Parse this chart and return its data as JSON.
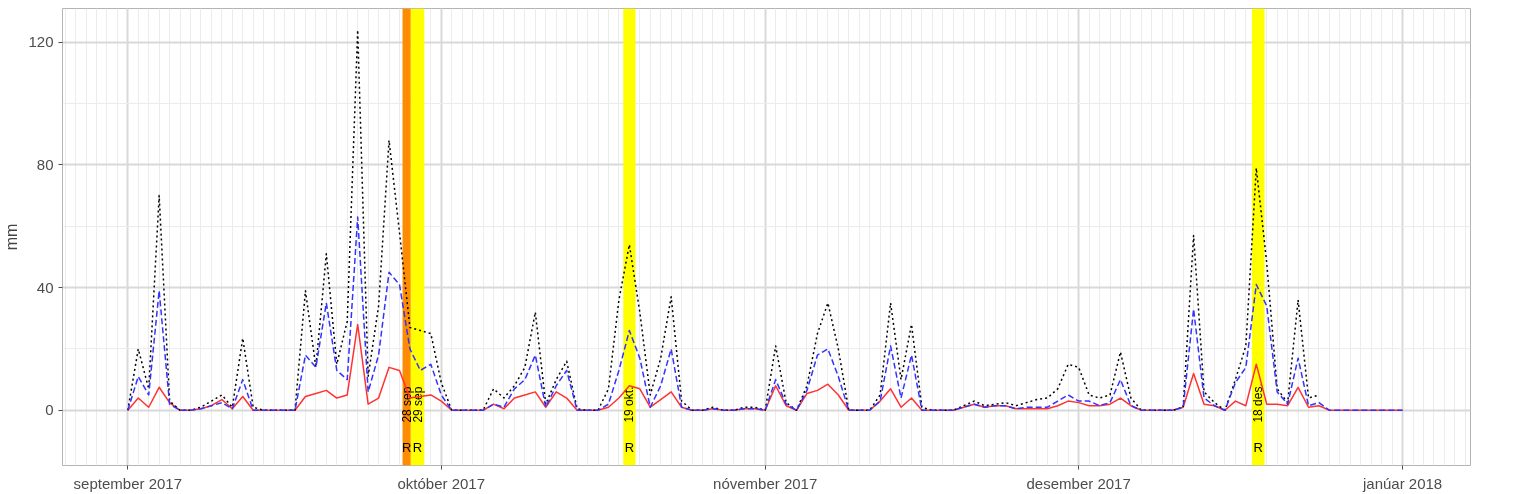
{
  "chart_data": {
    "type": "line",
    "ylabel": "mm",
    "x": [
      "2017-09-01",
      "2017-09-02",
      "2017-09-03",
      "2017-09-04",
      "2017-09-05",
      "2017-09-06",
      "2017-09-07",
      "2017-09-08",
      "2017-09-09",
      "2017-09-10",
      "2017-09-11",
      "2017-09-12",
      "2017-09-13",
      "2017-09-14",
      "2017-09-15",
      "2017-09-16",
      "2017-09-17",
      "2017-09-18",
      "2017-09-19",
      "2017-09-20",
      "2017-09-21",
      "2017-09-22",
      "2017-09-23",
      "2017-09-24",
      "2017-09-25",
      "2017-09-26",
      "2017-09-27",
      "2017-09-28",
      "2017-09-29",
      "2017-09-30",
      "2017-10-01",
      "2017-10-02",
      "2017-10-03",
      "2017-10-04",
      "2017-10-05",
      "2017-10-06",
      "2017-10-07",
      "2017-10-08",
      "2017-10-09",
      "2017-10-10",
      "2017-10-11",
      "2017-10-12",
      "2017-10-13",
      "2017-10-14",
      "2017-10-15",
      "2017-10-16",
      "2017-10-17",
      "2017-10-18",
      "2017-10-19",
      "2017-10-20",
      "2017-10-21",
      "2017-10-22",
      "2017-10-23",
      "2017-10-24",
      "2017-10-25",
      "2017-10-26",
      "2017-10-27",
      "2017-10-28",
      "2017-10-29",
      "2017-10-30",
      "2017-10-31",
      "2017-11-01",
      "2017-11-02",
      "2017-11-03",
      "2017-11-04",
      "2017-11-05",
      "2017-11-06",
      "2017-11-07",
      "2017-11-08",
      "2017-11-09",
      "2017-11-10",
      "2017-11-11",
      "2017-11-12",
      "2017-11-13",
      "2017-11-14",
      "2017-11-15",
      "2017-11-16",
      "2017-11-17",
      "2017-11-18",
      "2017-11-19",
      "2017-11-20",
      "2017-11-21",
      "2017-11-22",
      "2017-11-23",
      "2017-11-24",
      "2017-11-25",
      "2017-11-26",
      "2017-11-27",
      "2017-11-28",
      "2017-11-29",
      "2017-11-30",
      "2017-12-01",
      "2017-12-02",
      "2017-12-03",
      "2017-12-04",
      "2017-12-05",
      "2017-12-06",
      "2017-12-07",
      "2017-12-08",
      "2017-12-09",
      "2017-12-10",
      "2017-12-11",
      "2017-12-12",
      "2017-12-13",
      "2017-12-14",
      "2017-12-15",
      "2017-12-16",
      "2017-12-17",
      "2017-12-18",
      "2017-12-19",
      "2017-12-20",
      "2017-12-21",
      "2017-12-22",
      "2017-12-23",
      "2017-12-24",
      "2017-12-25",
      "2017-12-26",
      "2017-12-27",
      "2017-12-28",
      "2017-12-29",
      "2017-12-30",
      "2017-12-31",
      "2018-01-01"
    ],
    "series": [
      {
        "color": "#ff3333",
        "line_style": "solid",
        "values": [
          0,
          4,
          1,
          7.5,
          2.5,
          0,
          0,
          0.5,
          1.5,
          3.5,
          0.5,
          4.5,
          0,
          0,
          0,
          0,
          0,
          4.5,
          5.5,
          6.5,
          4,
          5,
          28,
          2,
          4,
          14,
          13,
          4,
          4.5,
          5,
          3,
          0,
          0,
          0,
          0,
          2,
          0.5,
          4,
          5,
          6,
          1,
          6,
          4,
          0,
          0,
          0,
          1,
          4,
          8,
          7,
          1,
          3.5,
          6,
          1,
          0,
          0,
          0.5,
          0,
          0,
          0.5,
          0.5,
          0,
          8,
          1.5,
          0,
          5.5,
          6.5,
          8.5,
          5,
          0,
          0,
          0,
          3,
          7,
          1,
          4,
          0,
          0,
          0,
          0,
          1,
          2,
          1,
          1.5,
          1.5,
          0.5,
          0.5,
          0.5,
          0.5,
          1.5,
          3,
          2.5,
          1.5,
          1.5,
          2,
          4,
          1.5,
          0,
          0,
          0,
          0,
          1,
          12,
          2,
          1.5,
          0,
          3,
          1.5,
          15,
          2,
          2,
          1.5,
          7.5,
          1,
          1.5,
          0,
          0,
          0,
          0,
          0,
          0,
          0,
          0
        ]
      },
      {
        "color": "#000000",
        "line_style": "dotted",
        "values": [
          0,
          20,
          7,
          70,
          3,
          0,
          0,
          1,
          3,
          5,
          1,
          23.5,
          1,
          0,
          0,
          0,
          0,
          39,
          14,
          51,
          15,
          29,
          124,
          11,
          34,
          88,
          58,
          27,
          26,
          25,
          9,
          0,
          0,
          0,
          0,
          7,
          4,
          8,
          14,
          32,
          2,
          10,
          16,
          0.5,
          0,
          0,
          7,
          36,
          54,
          32,
          5,
          17,
          37,
          3,
          0,
          0,
          1,
          0,
          0,
          1,
          1,
          0,
          21,
          2.5,
          0,
          8,
          25,
          35,
          20,
          0,
          0,
          0,
          5,
          35,
          10,
          28,
          1,
          0,
          0,
          0,
          1.5,
          3,
          1.5,
          2,
          2.5,
          1.5,
          2.5,
          3.5,
          4,
          7,
          15,
          14,
          5,
          4,
          5,
          19,
          4,
          0,
          0,
          0,
          0,
          1,
          57,
          6,
          2.5,
          0,
          10,
          21,
          79,
          48,
          7,
          2.5,
          36,
          4,
          5,
          null,
          null,
          null,
          null,
          null,
          null,
          null,
          null
        ]
      },
      {
        "color": "#3333ff",
        "line_style": "dashed",
        "values": [
          0,
          11,
          5,
          39,
          2,
          0,
          0,
          0.5,
          1.5,
          2.5,
          0.5,
          10,
          0,
          0,
          0,
          0,
          0,
          18,
          14,
          35,
          13,
          10,
          63,
          6,
          18,
          45,
          41,
          20,
          13,
          15,
          5,
          0,
          0,
          0,
          0,
          2,
          1,
          7,
          10,
          18,
          1,
          8,
          13,
          0,
          0,
          0,
          2,
          13,
          26,
          17,
          1,
          8,
          20,
          1,
          0,
          0,
          0.5,
          0,
          0,
          0.5,
          0.5,
          0,
          10,
          2,
          0,
          6.5,
          18,
          20,
          11,
          0,
          0,
          0,
          3,
          21,
          4,
          18,
          0,
          0,
          0,
          0,
          1,
          2,
          1,
          1.5,
          1.5,
          0.5,
          1,
          1,
          1,
          3,
          5,
          3,
          3,
          1.5,
          2.5,
          10,
          1.5,
          0,
          0,
          0,
          0,
          1,
          33,
          4,
          1.5,
          0,
          9,
          14,
          41,
          34,
          6,
          2,
          17,
          1.5,
          2.5,
          0,
          0,
          0,
          0,
          0,
          0,
          0,
          0
        ]
      }
    ],
    "xlim": [
      "2017-08-25T18:00",
      "2018-01-07T12:00"
    ],
    "xticks": [
      {
        "value": "2017-09-01",
        "label": "september 2017"
      },
      {
        "value": "2017-10-01",
        "label": "október 2017"
      },
      {
        "value": "2017-11-01",
        "label": "nóvember 2017"
      },
      {
        "value": "2017-12-01",
        "label": "desember 2017"
      },
      {
        "value": "2018-01-01",
        "label": "janúar 2018"
      }
    ],
    "ylim": [
      -18,
      131
    ],
    "yticks": [
      0,
      40,
      80,
      120
    ],
    "grid": true,
    "bands": [
      {
        "axis": "x",
        "from": "2017-09-27T07:00",
        "to": "2017-09-28T02:00",
        "label": "28 sep",
        "color": "#ff8c00"
      },
      {
        "axis": "x",
        "from": "2017-09-28T02:00",
        "to": "2017-09-29T09:00",
        "label": "29 sep",
        "color": "#ffff00"
      },
      {
        "axis": "x",
        "from": "2017-10-18T10:00",
        "to": "2017-10-19T14:00",
        "label": "19 okt.",
        "color": "#ffff00"
      },
      {
        "axis": "x",
        "from": "2017-12-17T14:00",
        "to": "2017-12-18T19:00",
        "label": "18 des.",
        "color": "#ffff00"
      }
    ],
    "annotations": [
      "R",
      "R",
      "R",
      "R"
    ]
  }
}
